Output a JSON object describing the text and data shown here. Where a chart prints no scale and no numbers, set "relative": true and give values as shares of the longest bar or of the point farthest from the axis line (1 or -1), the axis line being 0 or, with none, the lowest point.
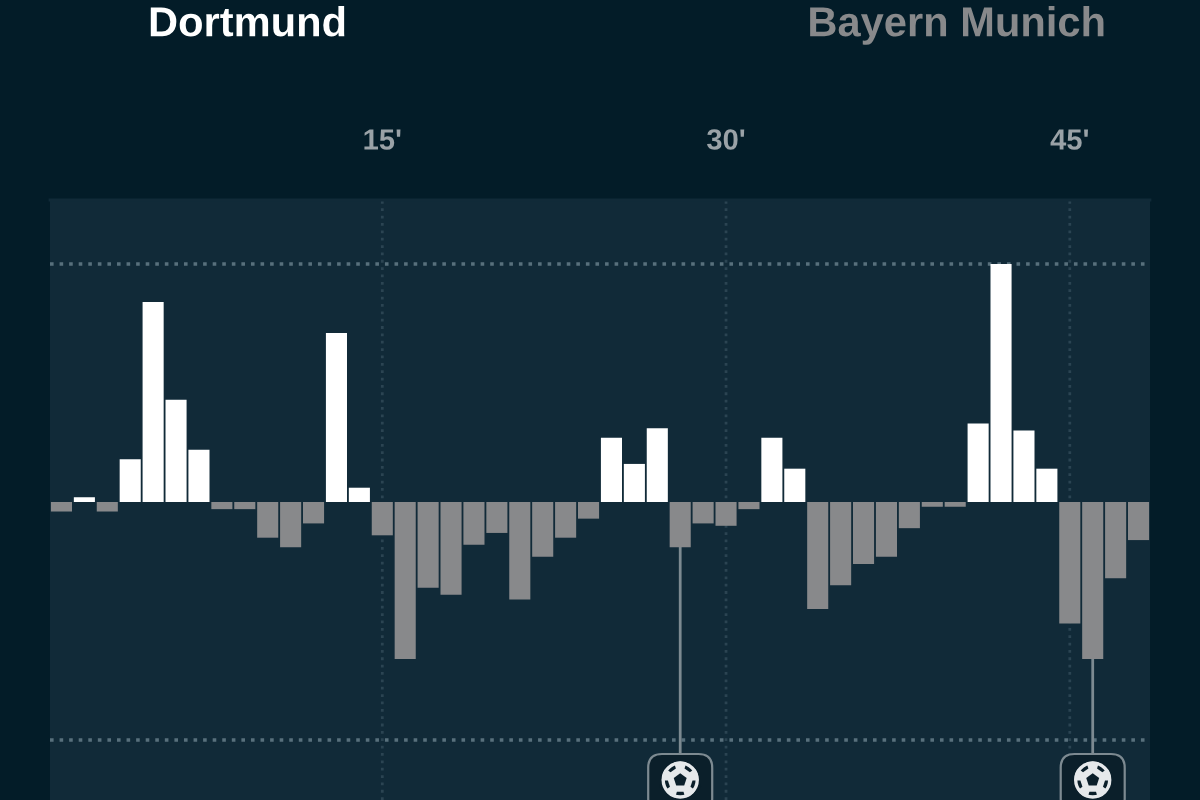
{
  "chart_data": {
    "type": "bar",
    "relative": true,
    "x": [
      1,
      2,
      3,
      4,
      5,
      6,
      7,
      8,
      9,
      10,
      11,
      12,
      13,
      14,
      15,
      16,
      17,
      18,
      19,
      20,
      21,
      22,
      23,
      24,
      25,
      26,
      27,
      28,
      29,
      30,
      31,
      32,
      33,
      34,
      35,
      36,
      37,
      38,
      39,
      40,
      41,
      42,
      43,
      44,
      45,
      46,
      47,
      48
    ],
    "series": [
      {
        "name": "Dortmund",
        "color": "#ffffff",
        "values": [
          null,
          0.02,
          null,
          0.18,
          0.84,
          0.43,
          0.22,
          null,
          null,
          null,
          null,
          null,
          0.71,
          0.06,
          null,
          null,
          null,
          null,
          null,
          null,
          null,
          null,
          null,
          null,
          0.27,
          0.16,
          0.31,
          null,
          null,
          null,
          null,
          0.27,
          0.14,
          null,
          null,
          null,
          null,
          null,
          null,
          null,
          0.33,
          1,
          0.3,
          0.14,
          null,
          null,
          null,
          null
        ]
      },
      {
        "name": "Bayern Munich",
        "color": "#88898b",
        "values": [
          -0.04,
          null,
          -0.04,
          null,
          null,
          null,
          null,
          -0.03,
          -0.03,
          -0.15,
          -0.19,
          -0.09,
          null,
          null,
          -0.14,
          -0.66,
          -0.36,
          -0.39,
          -0.18,
          -0.13,
          -0.41,
          -0.23,
          -0.15,
          -0.07,
          null,
          null,
          null,
          -0.19,
          -0.09,
          -0.1,
          -0.03,
          null,
          null,
          -0.45,
          -0.35,
          -0.26,
          -0.23,
          -0.11,
          -0.02,
          -0.02,
          null,
          null,
          null,
          null,
          -0.51,
          -0.66,
          -0.32,
          -0.16
        ]
      }
    ],
    "xlim": [
      0.5,
      48.5
    ],
    "xticks": [
      {
        "value": 15,
        "label": "15'"
      },
      {
        "value": 30,
        "label": "30'"
      },
      {
        "value": 45,
        "label": "45'"
      }
    ],
    "grid": "x",
    "ref_lines": [
      {
        "axis": "y",
        "value": 1,
        "color": "#58707c",
        "line_style": "dotted"
      },
      {
        "axis": "y",
        "value": -1,
        "color": "#58707c",
        "line_style": "dotted"
      },
      {
        "axis": "x",
        "value": 28,
        "color": "#7d8a91",
        "line_style": "solid"
      },
      {
        "axis": "x",
        "value": 46,
        "color": "#7d8a91",
        "line_style": "solid"
      }
    ]
  }
}
